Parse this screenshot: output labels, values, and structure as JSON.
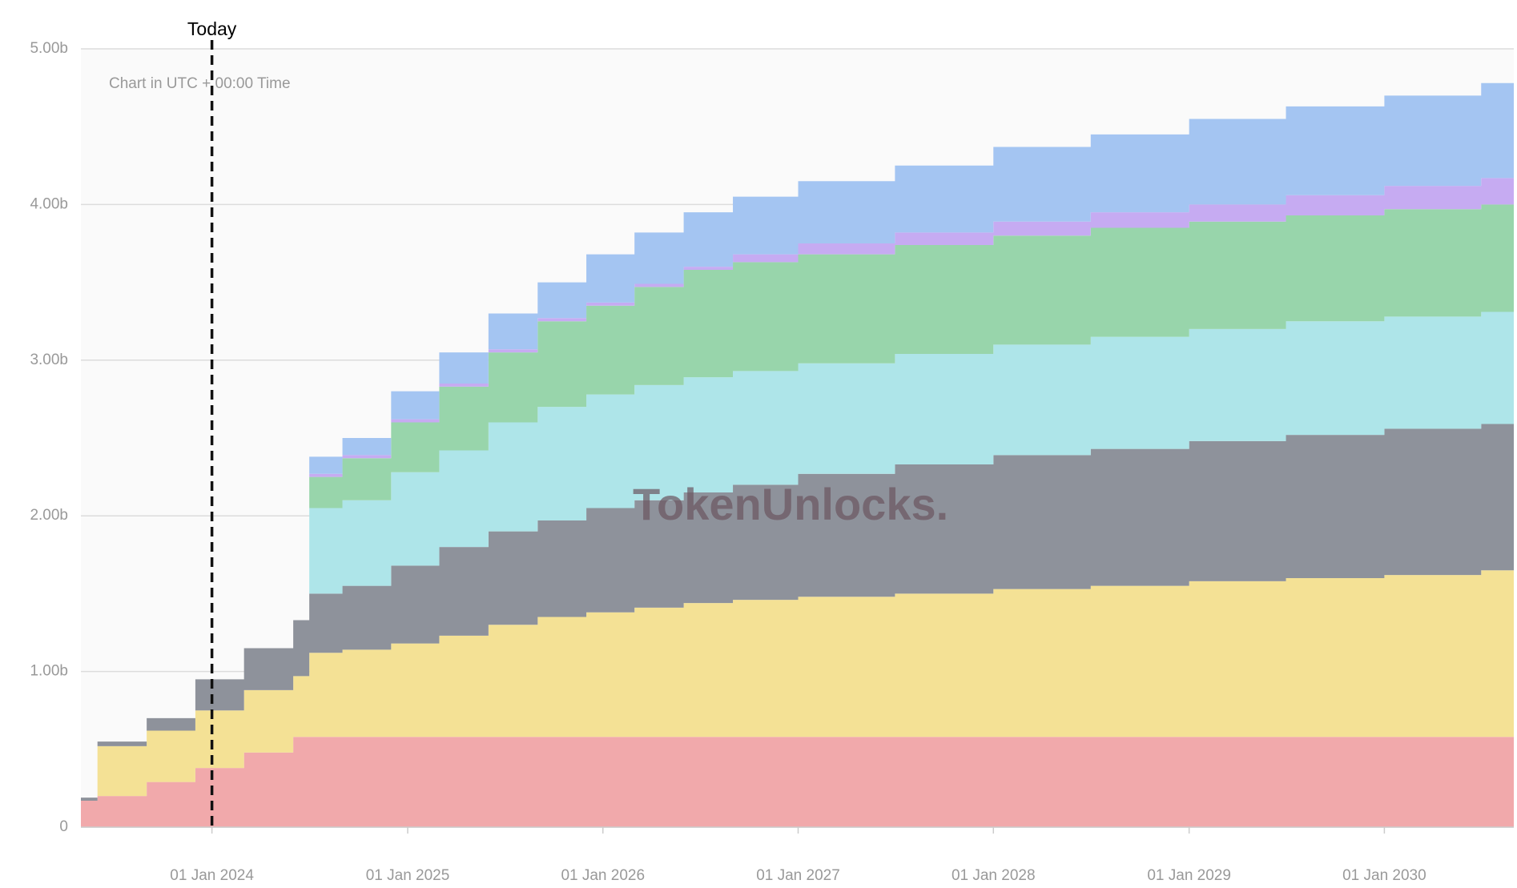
{
  "chart_data": {
    "type": "stacked-step-area",
    "subtitle": "Chart in UTC + 00:00 Time",
    "watermark": "TokenUnlocks.",
    "today_label": "Today",
    "today": "2024-01-01",
    "x": [
      "2023-05-01",
      "2023-06-01",
      "2023-09-01",
      "2023-12-01",
      "2024-03-01",
      "2024-06-01",
      "2024-07-01",
      "2024-09-01",
      "2024-12-01",
      "2025-03-01",
      "2025-06-01",
      "2025-09-01",
      "2025-12-01",
      "2026-03-01",
      "2026-06-01",
      "2026-09-01",
      "2027-01-01",
      "2027-07-01",
      "2028-01-01",
      "2028-07-01",
      "2029-01-01",
      "2029-07-01",
      "2030-01-01",
      "2030-07-01"
    ],
    "series": [
      {
        "color": "#f1a9ab",
        "values": [
          0.17,
          0.2,
          0.29,
          0.38,
          0.48,
          0.58,
          0.58,
          0.58,
          0.58,
          0.58,
          0.58,
          0.58,
          0.58,
          0.58,
          0.58,
          0.58,
          0.58,
          0.58,
          0.58,
          0.58,
          0.58,
          0.58,
          0.58,
          0.58
        ]
      },
      {
        "color": "#f4e195",
        "values": [
          0,
          0.32,
          0.33,
          0.37,
          0.4,
          0.39,
          0.54,
          0.56,
          0.6,
          0.65,
          0.72,
          0.77,
          0.8,
          0.83,
          0.86,
          0.88,
          0.9,
          0.92,
          0.95,
          0.97,
          1.0,
          1.02,
          1.04,
          1.07
        ]
      },
      {
        "color": "#8e929b",
        "values": [
          0.02,
          0.03,
          0.08,
          0.2,
          0.27,
          0.36,
          0.38,
          0.41,
          0.5,
          0.57,
          0.6,
          0.62,
          0.67,
          0.69,
          0.71,
          0.74,
          0.79,
          0.83,
          0.86,
          0.88,
          0.9,
          0.92,
          0.94,
          0.94
        ]
      },
      {
        "color": "#aee5e9",
        "values": [
          0,
          0,
          0,
          0,
          0,
          0,
          0.55,
          0.55,
          0.6,
          0.62,
          0.7,
          0.73,
          0.73,
          0.74,
          0.74,
          0.73,
          0.71,
          0.71,
          0.71,
          0.72,
          0.72,
          0.73,
          0.72,
          0.72
        ]
      },
      {
        "color": "#98d5ab",
        "values": [
          0,
          0,
          0,
          0,
          0,
          0,
          0.2,
          0.27,
          0.32,
          0.41,
          0.45,
          0.55,
          0.57,
          0.63,
          0.69,
          0.7,
          0.7,
          0.7,
          0.7,
          0.7,
          0.69,
          0.68,
          0.69,
          0.69
        ]
      },
      {
        "color": "#c6abf2",
        "values": [
          0,
          0,
          0,
          0,
          0,
          0,
          0.02,
          0.02,
          0.02,
          0.02,
          0.02,
          0.02,
          0.02,
          0.02,
          0.02,
          0.05,
          0.07,
          0.08,
          0.09,
          0.1,
          0.11,
          0.13,
          0.15,
          0.17
        ]
      },
      {
        "color": "#a4c5f2",
        "values": [
          0,
          0,
          0,
          0,
          0,
          0,
          0.11,
          0.11,
          0.18,
          0.2,
          0.23,
          0.23,
          0.31,
          0.33,
          0.35,
          0.37,
          0.4,
          0.43,
          0.48,
          0.5,
          0.55,
          0.57,
          0.58,
          0.61
        ]
      }
    ],
    "xlim": [
      "2023-05-01",
      "2030-08-31"
    ],
    "xticks": [
      {
        "value": "2024-01-01",
        "label": "01 Jan 2024"
      },
      {
        "value": "2025-01-01",
        "label": "01 Jan 2025"
      },
      {
        "value": "2026-01-01",
        "label": "01 Jan 2026"
      },
      {
        "value": "2027-01-01",
        "label": "01 Jan 2027"
      },
      {
        "value": "2028-01-01",
        "label": "01 Jan 2028"
      },
      {
        "value": "2029-01-01",
        "label": "01 Jan 2029"
      },
      {
        "value": "2030-01-01",
        "label": "01 Jan 2030"
      }
    ],
    "ylim": [
      0,
      5
    ],
    "yticks": [
      0,
      {
        "value": 1,
        "label": "1.00b"
      },
      {
        "value": 2,
        "label": "2.00b"
      },
      {
        "value": 3,
        "label": "3.00b"
      },
      {
        "value": 4,
        "label": "4.00b"
      },
      {
        "value": 5,
        "label": "5.00b"
      }
    ],
    "grid": true
  }
}
